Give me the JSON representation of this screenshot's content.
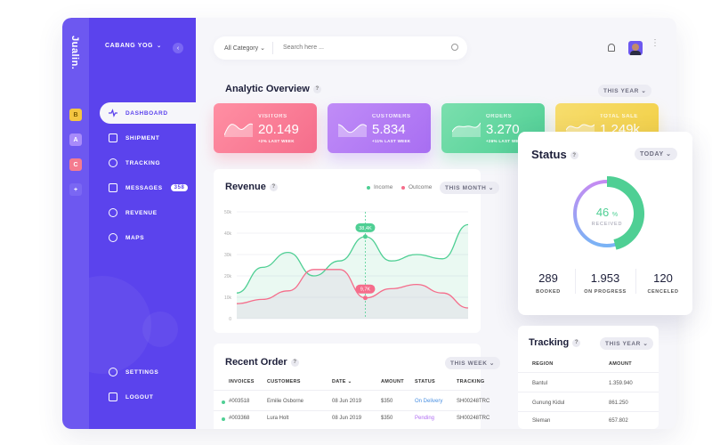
{
  "app": {
    "brand": "Jualin."
  },
  "workspaces": [
    {
      "label": "B",
      "color": "#f4c542"
    },
    {
      "label": "A",
      "color": "#a78bfa"
    },
    {
      "label": "C",
      "color": "#f47b8f"
    },
    {
      "label": "+",
      "color": "#6d58f0"
    }
  ],
  "sidebar": {
    "branch": "CABANG YOG",
    "nav": [
      {
        "label": "DASHBOARD",
        "icon": "activity-icon",
        "active": true
      },
      {
        "label": "SHIPMENT",
        "icon": "box-icon"
      },
      {
        "label": "TRACKING",
        "icon": "globe-icon"
      },
      {
        "label": "MESSAGES",
        "icon": "mail-icon",
        "badge": "358"
      },
      {
        "label": "REVENUE",
        "icon": "clock-icon"
      },
      {
        "label": "MAPS",
        "icon": "map-pin-icon"
      }
    ],
    "bottom": [
      {
        "label": "SETTINGS",
        "icon": "gear-icon"
      },
      {
        "label": "LOGOUT",
        "icon": "logout-icon"
      }
    ]
  },
  "header": {
    "category": "All Category",
    "search_placeholder": "Search here ..."
  },
  "overview": {
    "title": "Analytic Overview",
    "range": "THIS YEAR",
    "cards": [
      {
        "label": "VISITORS",
        "value": "20.149",
        "sub": "+2% LAST WEEK",
        "color": "#f56d8b",
        "color2": "#ff8fa3"
      },
      {
        "label": "CUSTOMERS",
        "value": "5.834",
        "sub": "+11% LAST WEEK",
        "color": "#a86ef2",
        "color2": "#c08cf7"
      },
      {
        "label": "ORDERS",
        "value": "3.270",
        "sub": "+26% LAST WEEK",
        "color": "#4fcf94",
        "color2": "#7bdfae"
      },
      {
        "label": "TOTAL SALE",
        "value": "1.249k",
        "sub": "+12% LAST WEEK",
        "color": "#f2cf44",
        "color2": "#f7dd6e"
      }
    ]
  },
  "revenue": {
    "title": "Revenue",
    "legend_income": "Income",
    "legend_outcome": "Outcome",
    "range": "THIS MONTH",
    "income_color": "#4fcf94",
    "outcome_color": "#f56d8b",
    "marker_income": "38,4K",
    "marker_outcome": "9,7K"
  },
  "chart_data": {
    "type": "line",
    "title": "Revenue",
    "ylim": [
      0,
      50000
    ],
    "y_ticks": [
      "0",
      "10k",
      "20k",
      "30k",
      "40k",
      "50k"
    ],
    "series": [
      {
        "name": "Income",
        "values": [
          12000,
          24000,
          31000,
          20000,
          27000,
          38400,
          27000,
          30000,
          28000,
          44000
        ]
      },
      {
        "name": "Outcome",
        "values": [
          7000,
          9000,
          13000,
          23000,
          23000,
          9700,
          14000,
          16000,
          12000,
          5000
        ]
      }
    ]
  },
  "orders": {
    "title": "Recent Order",
    "range": "THIS WEEK",
    "columns": [
      "INVOICES",
      "CUSTOMERS",
      "DATE",
      "AMOUNT",
      "STATUS",
      "TRACKING"
    ],
    "rows": [
      {
        "invoice": "#003518",
        "customer": "Emilie Osborne",
        "date": "08 Jun 2019",
        "amount": "$350",
        "status": "On Delivery",
        "status_color": "#4a90e2",
        "tracking": "SH00248TRC"
      },
      {
        "invoice": "#003368",
        "customer": "Lura Holt",
        "date": "08 Jun 2019",
        "amount": "$350",
        "status": "Pending",
        "status_color": "#b06ef2",
        "tracking": "SH00248TRC"
      }
    ]
  },
  "status": {
    "title": "Status",
    "range": "TODAY",
    "percent": "46",
    "percent_sign": "%",
    "received": "RECEIVED",
    "received_fraction": 0.46,
    "stats": [
      {
        "value": "289",
        "label": "BOOKED"
      },
      {
        "value": "1.953",
        "label": "ON PROGRESS"
      },
      {
        "value": "120",
        "label": "CENCELED"
      }
    ]
  },
  "tracking": {
    "title": "Tracking",
    "range": "THIS YEAR",
    "columns": [
      "REGION",
      "AMOUNT"
    ],
    "rows": [
      {
        "region": "Bantul",
        "amount": "1.359.940"
      },
      {
        "region": "Gunung Kidul",
        "amount": "861.250"
      },
      {
        "region": "Sleman",
        "amount": "657.802"
      }
    ]
  }
}
